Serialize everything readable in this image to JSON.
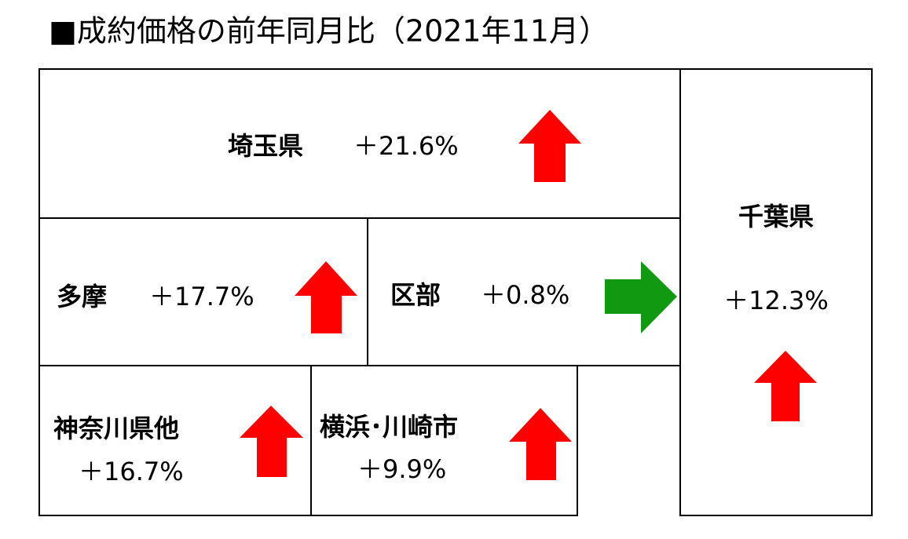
{
  "title": "■成約価格の前年同月比（2021年11月）",
  "regions": [
    {
      "name": "埼玉県",
      "change": "＋21.6%"
    },
    {
      "name": "千葉県",
      "change": "＋12.3%"
    },
    {
      "name": "多摩",
      "change": "＋17.7%"
    },
    {
      "name": "区部",
      "change": "＋0.8%"
    },
    {
      "name": "神奈川県他",
      "change": "＋16.7%"
    },
    {
      "name": "横浜･川崎市",
      "change": "＋9.9%"
    }
  ]
}
